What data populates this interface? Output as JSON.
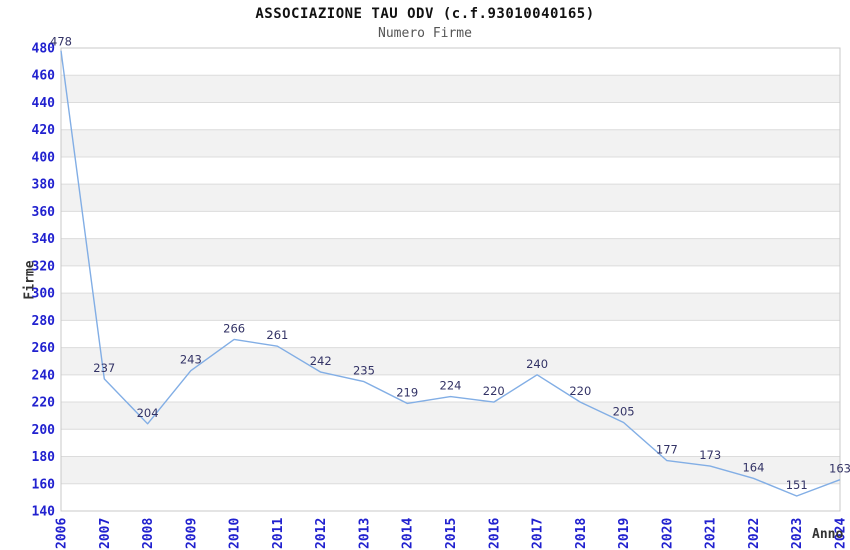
{
  "chart_data": {
    "type": "line",
    "title": "ASSOCIAZIONE TAU ODV (c.f.93010040165)",
    "subtitle": "Numero Firme",
    "xlabel": "Anno",
    "ylabel": "Firme",
    "categories": [
      "2006",
      "2007",
      "2008",
      "2009",
      "2010",
      "2011",
      "2012",
      "2013",
      "2014",
      "2015",
      "2016",
      "2017",
      "2018",
      "2019",
      "2020",
      "2021",
      "2022",
      "2023",
      "2024"
    ],
    "series": [
      {
        "name": "Numero Firme",
        "values": [
          478,
          237,
          204,
          243,
          266,
          261,
          242,
          235,
          219,
          224,
          220,
          240,
          220,
          205,
          177,
          173,
          164,
          151,
          163
        ]
      }
    ],
    "ylim": [
      140,
      480
    ],
    "ytick_step": 20,
    "grid": "horizontal-only",
    "plot_bands": "alternating horizontal bands every 20 units, white and light gray, top band white",
    "legend_position": "none",
    "data_labels_visible": true,
    "colors": {
      "line": "#82aee5",
      "tick_label": "#2121cf",
      "data_label": "#333366",
      "band_fill": "#f2f2f2",
      "gridline": "#dcdcdc",
      "frame": "#c8c8c8",
      "title": "#111111",
      "subtitle": "#555555",
      "axis_title": "#333333",
      "background": "#ffffff"
    }
  }
}
